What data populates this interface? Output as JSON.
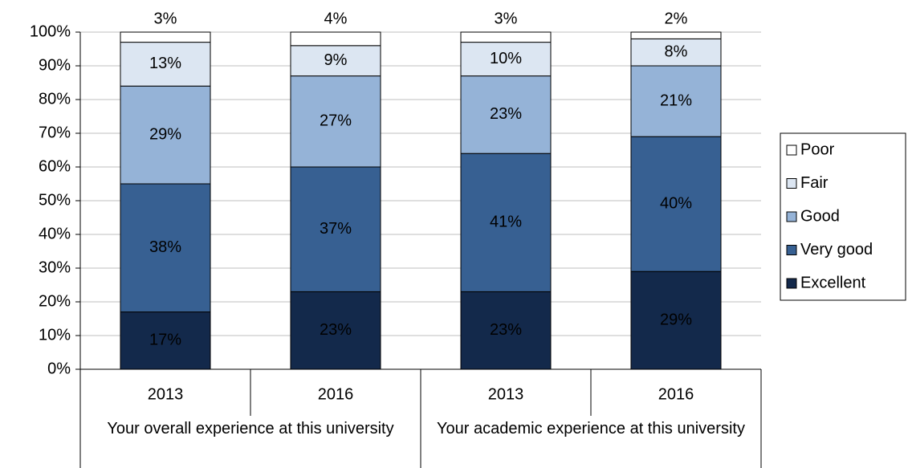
{
  "chart_data": {
    "type": "stacked_bar_100",
    "categories": [
      "2013",
      "2016",
      "2013",
      "2016"
    ],
    "groups": [
      "Your overall experience at this university",
      "Your academic experience at this university"
    ],
    "series": [
      {
        "name": "Excellent",
        "color": "#13294b",
        "values": [
          17,
          23,
          23,
          29
        ],
        "value_labels": [
          "17%",
          "23%",
          "23%",
          "29%"
        ]
      },
      {
        "name": "Very good",
        "color": "#376092",
        "values": [
          38,
          37,
          41,
          40
        ],
        "value_labels": [
          "38%",
          "37%",
          "41%",
          "40%"
        ]
      },
      {
        "name": "Good",
        "color": "#95b3d7",
        "values": [
          29,
          27,
          23,
          21
        ],
        "value_labels": [
          "29%",
          "27%",
          "23%",
          "21%"
        ]
      },
      {
        "name": "Fair",
        "color": "#dce6f2",
        "values": [
          13,
          9,
          10,
          8
        ],
        "value_labels": [
          "13%",
          "9%",
          "10%",
          "8%"
        ]
      },
      {
        "name": "Poor",
        "color": "#ffffff",
        "values": [
          3,
          4,
          3,
          2
        ],
        "value_labels": [
          "3%",
          "4%",
          "3%",
          "2%"
        ]
      }
    ],
    "ylim": [
      0,
      100
    ],
    "yticks": [
      {
        "value": 0,
        "label": "0%"
      },
      {
        "value": 10,
        "label": "10%"
      },
      {
        "value": 20,
        "label": "20%"
      },
      {
        "value": 30,
        "label": "30%"
      },
      {
        "value": 40,
        "label": "40%"
      },
      {
        "value": 50,
        "label": "50%"
      },
      {
        "value": 60,
        "label": "60%"
      },
      {
        "value": 70,
        "label": "70%"
      },
      {
        "value": 80,
        "label": "80%"
      },
      {
        "value": 90,
        "label": "90%"
      },
      {
        "value": 100,
        "label": "100%"
      }
    ],
    "grid": true,
    "legend_position": "right"
  }
}
